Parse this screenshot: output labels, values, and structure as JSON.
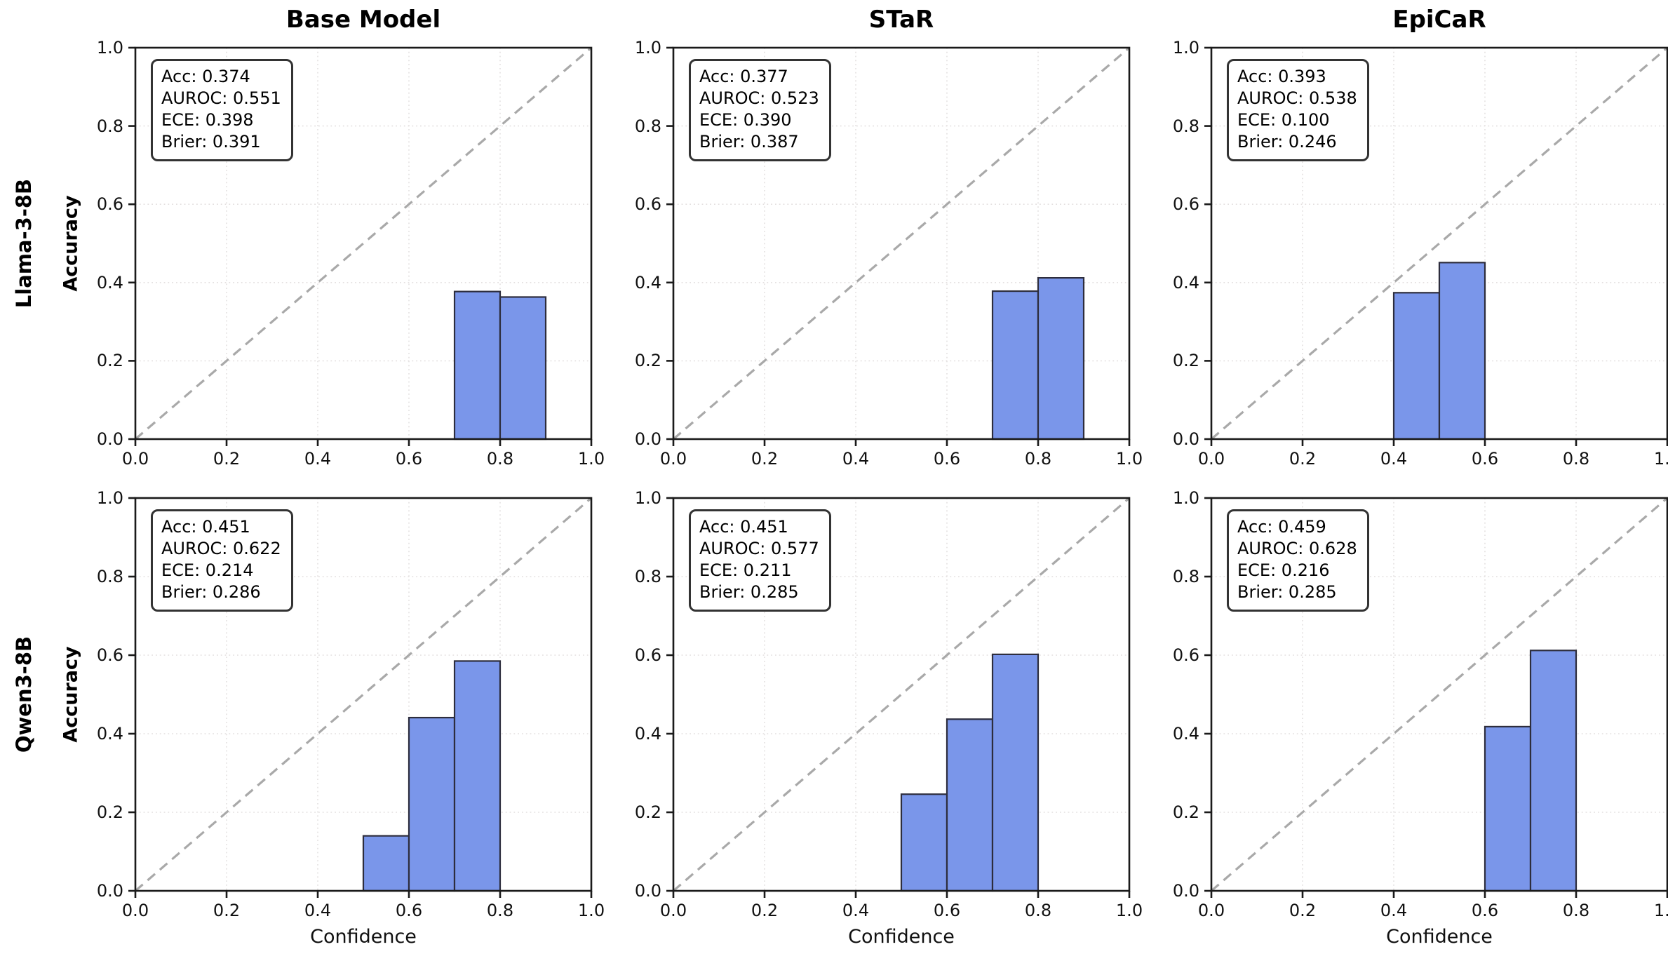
{
  "figure": {
    "column_titles": [
      "Base Model",
      "STaR",
      "EpiCaR"
    ],
    "row_labels": [
      "Llama-3-8B",
      "Qwen3-8B"
    ],
    "ylabel": "Accuracy",
    "xlabel": "Confidence"
  },
  "colors": {
    "bar_fill": "#7a96ea",
    "bar_edge": "#2d2d3d",
    "diagonal": "#a9a9a9",
    "grid": "#e3dfdf",
    "axis": "#1a1a1a"
  },
  "axis": {
    "xlim": [
      0.0,
      1.0
    ],
    "ylim": [
      0.0,
      1.0
    ],
    "xtick_labels": [
      "0.0",
      "0.2",
      "0.4",
      "0.6",
      "0.8",
      "1.0"
    ],
    "ytick_labels": [
      "0.0",
      "0.2",
      "0.4",
      "0.6",
      "0.8",
      "1.0"
    ],
    "grid_style": "dotted",
    "diagonal_reference_line": "dashed y=x"
  },
  "chart_data": [
    {
      "type": "bar",
      "row": "Llama-3-8B",
      "column": "Base Model",
      "xlabel": "Confidence",
      "ylabel": "Accuracy",
      "xlim": [
        0.0,
        1.0
      ],
      "ylim": [
        0.0,
        1.0
      ],
      "bins": [
        {
          "x0": 0.7,
          "x1": 0.8,
          "accuracy": 0.377
        },
        {
          "x0": 0.8,
          "x1": 0.9,
          "accuracy": 0.363
        }
      ],
      "stats": {
        "Acc": "0.374",
        "AUROC": "0.551",
        "ECE": "0.398",
        "Brier": "0.391"
      },
      "stats_lines": [
        "Acc: 0.374",
        "AUROC: 0.551",
        "ECE: 0.398",
        "Brier: 0.391"
      ]
    },
    {
      "type": "bar",
      "row": "Llama-3-8B",
      "column": "STaR",
      "xlabel": "Confidence",
      "ylabel": "Accuracy",
      "xlim": [
        0.0,
        1.0
      ],
      "ylim": [
        0.0,
        1.0
      ],
      "bins": [
        {
          "x0": 0.7,
          "x1": 0.8,
          "accuracy": 0.378
        },
        {
          "x0": 0.8,
          "x1": 0.9,
          "accuracy": 0.412
        }
      ],
      "stats": {
        "Acc": "0.377",
        "AUROC": "0.523",
        "ECE": "0.390",
        "Brier": "0.387"
      },
      "stats_lines": [
        "Acc: 0.377",
        "AUROC: 0.523",
        "ECE: 0.390",
        "Brier: 0.387"
      ]
    },
    {
      "type": "bar",
      "row": "Llama-3-8B",
      "column": "EpiCaR",
      "xlabel": "Confidence",
      "ylabel": "Accuracy",
      "xlim": [
        0.0,
        1.0
      ],
      "ylim": [
        0.0,
        1.0
      ],
      "bins": [
        {
          "x0": 0.4,
          "x1": 0.5,
          "accuracy": 0.374
        },
        {
          "x0": 0.5,
          "x1": 0.6,
          "accuracy": 0.451
        }
      ],
      "stats": {
        "Acc": "0.393",
        "AUROC": "0.538",
        "ECE": "0.100",
        "Brier": "0.246"
      },
      "stats_lines": [
        "Acc: 0.393",
        "AUROC: 0.538",
        "ECE: 0.100",
        "Brier: 0.246"
      ]
    },
    {
      "type": "bar",
      "row": "Qwen3-8B",
      "column": "Base Model",
      "xlabel": "Confidence",
      "ylabel": "Accuracy",
      "xlim": [
        0.0,
        1.0
      ],
      "ylim": [
        0.0,
        1.0
      ],
      "bins": [
        {
          "x0": 0.5,
          "x1": 0.6,
          "accuracy": 0.14
        },
        {
          "x0": 0.6,
          "x1": 0.7,
          "accuracy": 0.441
        },
        {
          "x0": 0.7,
          "x1": 0.8,
          "accuracy": 0.585
        }
      ],
      "stats": {
        "Acc": "0.451",
        "AUROC": "0.622",
        "ECE": "0.214",
        "Brier": "0.286"
      },
      "stats_lines": [
        "Acc: 0.451",
        "AUROC: 0.622",
        "ECE: 0.214",
        "Brier: 0.286"
      ]
    },
    {
      "type": "bar",
      "row": "Qwen3-8B",
      "column": "STaR",
      "xlabel": "Confidence",
      "ylabel": "Accuracy",
      "xlim": [
        0.0,
        1.0
      ],
      "ylim": [
        0.0,
        1.0
      ],
      "bins": [
        {
          "x0": 0.5,
          "x1": 0.6,
          "accuracy": 0.246
        },
        {
          "x0": 0.6,
          "x1": 0.7,
          "accuracy": 0.437
        },
        {
          "x0": 0.7,
          "x1": 0.8,
          "accuracy": 0.602
        }
      ],
      "stats": {
        "Acc": "0.451",
        "AUROC": "0.577",
        "ECE": "0.211",
        "Brier": "0.285"
      },
      "stats_lines": [
        "Acc: 0.451",
        "AUROC: 0.577",
        "ECE: 0.211",
        "Brier: 0.285"
      ]
    },
    {
      "type": "bar",
      "row": "Qwen3-8B",
      "column": "EpiCaR",
      "xlabel": "Confidence",
      "ylabel": "Accuracy",
      "xlim": [
        0.0,
        1.0
      ],
      "ylim": [
        0.0,
        1.0
      ],
      "bins": [
        {
          "x0": 0.6,
          "x1": 0.7,
          "accuracy": 0.418
        },
        {
          "x0": 0.7,
          "x1": 0.8,
          "accuracy": 0.612
        }
      ],
      "stats": {
        "Acc": "0.459",
        "AUROC": "0.628",
        "ECE": "0.216",
        "Brier": "0.285"
      },
      "stats_lines": [
        "Acc: 0.459",
        "AUROC: 0.628",
        "ECE: 0.216",
        "Brier: 0.285"
      ]
    }
  ]
}
